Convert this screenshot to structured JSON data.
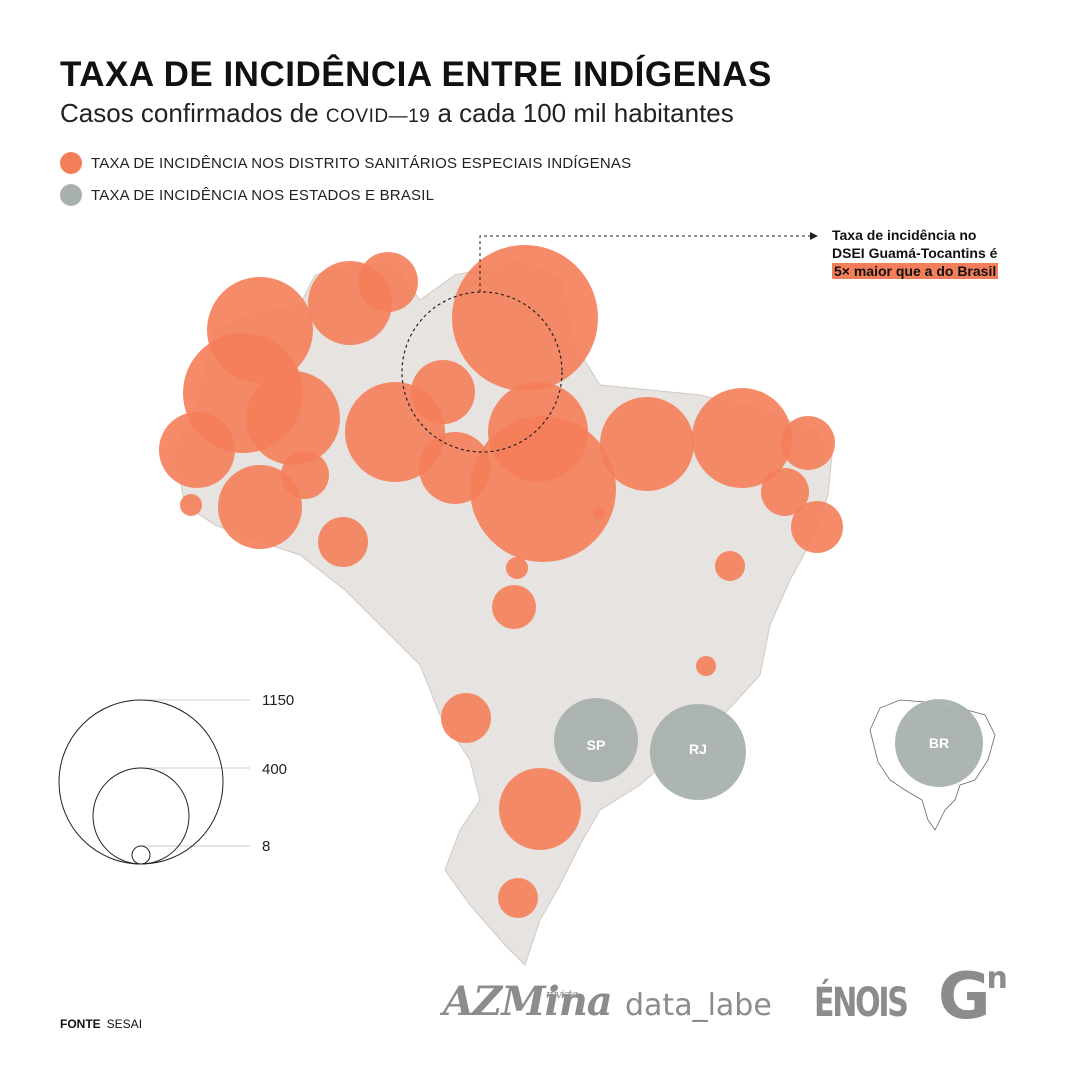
{
  "title": "TAXA DE INCIDÊNCIA ENTRE INDÍGENAS",
  "subtitle": {
    "prefix": "Casos confirmados de ",
    "disease": "COVID—19",
    "suffix": " a cada 100 mil habitantes"
  },
  "legend": {
    "dsei": {
      "label": "TAXA DE INCIDÊNCIA NOS DISTRITO SANITÁRIOS ESPECIAIS INDÍGENAS",
      "color": "#f57e5a"
    },
    "states": {
      "label": "TAXA DE INCIDÊNCIA NOS ESTADOS E BRASIL",
      "color": "#a9b1ae"
    }
  },
  "annotation": {
    "line1": "Taxa de incidência no",
    "line2": "DSEI Guamá-Tocantins é",
    "highlight": "5× maior que a do Brasil"
  },
  "size_legend": [
    "1150",
    "400",
    "8"
  ],
  "state_labels": [
    "SP",
    "RJ",
    "BR"
  ],
  "source": {
    "label": "FONTE",
    "value": "SESAI"
  },
  "logos": {
    "azmina_main": "AZMina",
    "azmina_small": "revista",
    "data_labe": "data_labe",
    "enois": "ÉNOIS",
    "gn": "G",
    "gn_sup": "n"
  },
  "colors": {
    "dsei": "#f57e5a",
    "state": "#a9b1ae",
    "land": "#e6e3e0"
  }
}
